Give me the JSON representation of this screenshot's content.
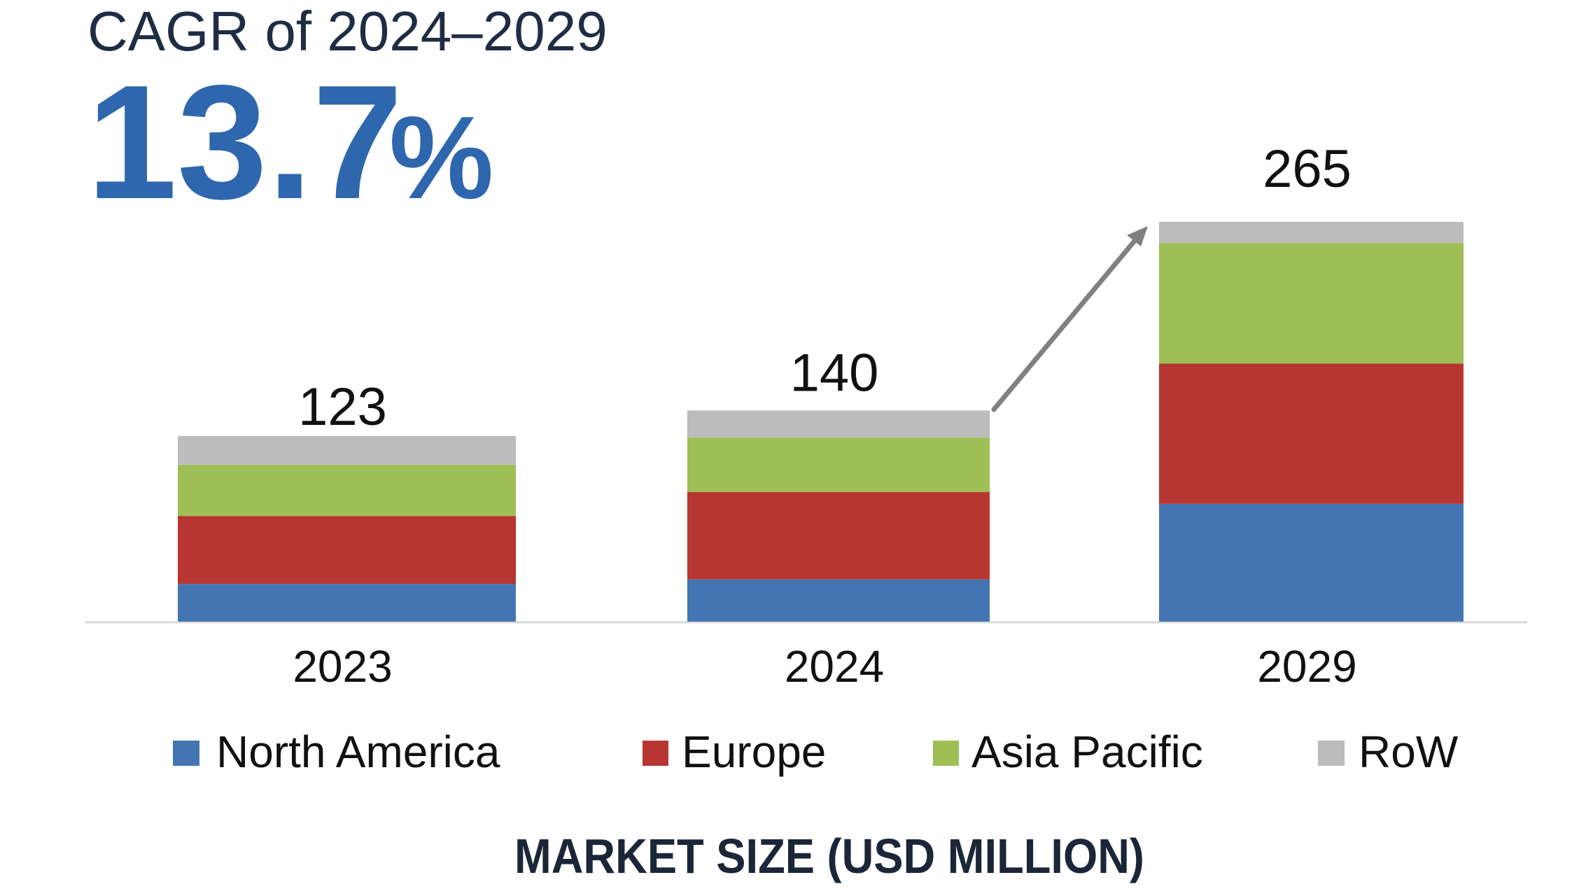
{
  "header": {
    "title": "CAGR of 2024–2029",
    "cagr_value": "13.7",
    "cagr_unit": "%"
  },
  "colors": {
    "title": "#1f2d44",
    "cagr": "#2e67ad",
    "arrow": "#808080",
    "axis": "#d9d9d9"
  },
  "chart_data": {
    "type": "bar",
    "stacked": true,
    "title": "CAGR of 2024–2029",
    "annotation": "13.7%",
    "xlabel": "MARKET SIZE (USD MILLION)",
    "ylabel": "",
    "categories": [
      "2023",
      "2024",
      "2029"
    ],
    "totals": [
      123,
      140,
      265
    ],
    "total_labels": [
      "123",
      "140",
      "265"
    ],
    "series": [
      {
        "name": "North America",
        "color": "#4375b2",
        "values": [
          25,
          28,
          78
        ]
      },
      {
        "name": "Europe",
        "color": "#b83632",
        "values": [
          45,
          58,
          93
        ]
      },
      {
        "name": "Asia Pacific",
        "color": "#9dbf55",
        "values": [
          34,
          36,
          80
        ]
      },
      {
        "name": "RoW",
        "color": "#bcbcbc",
        "values": [
          19,
          18,
          14
        ]
      }
    ],
    "ylim": [
      0,
      265
    ],
    "grid": false,
    "legend_position": "bottom"
  }
}
